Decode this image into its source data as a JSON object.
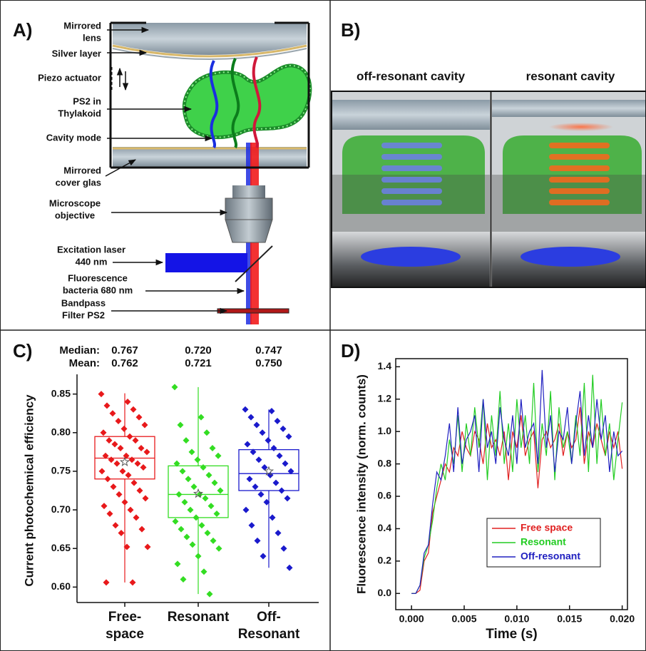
{
  "panel_a": {
    "label": "A)",
    "annotations": [
      [
        "Mirrored",
        "lens"
      ],
      [
        "Silver layer"
      ],
      [
        "Piezo actuator"
      ],
      [
        "PS2 in",
        "Thylakoid"
      ],
      [
        "Cavity mode"
      ],
      [
        "Mirrored",
        "cover glas"
      ],
      [
        "Microscope",
        "objective"
      ],
      [
        "Excitation laser",
        "440 nm"
      ],
      [
        "Fluorescence",
        "bacteria 680 nm"
      ],
      [
        "Bandpass",
        "Filter PS2"
      ]
    ]
  },
  "panel_b": {
    "label": "B)",
    "captions": [
      "off-resonant cavity",
      "resonant cavity"
    ]
  },
  "chart_data": [
    {
      "type": "box",
      "label": "C)",
      "median_title": "Median:",
      "mean_title": "Mean:",
      "ylabel": "Current photochemical efficiency",
      "categories": [
        [
          "Free-",
          "space"
        ],
        [
          "Resonant"
        ],
        [
          "Off-",
          "Resonant"
        ]
      ],
      "ylim": [
        0.58,
        0.87
      ],
      "yticks": [
        {
          "value": 0.6,
          "label": "0.60"
        },
        0.65,
        {
          "value": 0.7,
          "label": "0.70"
        },
        0.75,
        {
          "value": 0.8,
          "label": "0.80"
        },
        0.85
      ],
      "boxes": [
        {
          "color": "#e8191b",
          "q1": 0.74,
          "median": 0.767,
          "median_label": "0.767",
          "q3": 0.795,
          "mean": 0.762,
          "mean_label": "0.762",
          "whisker_low": 0.606,
          "whisker_high": 0.851,
          "points": [
            0.85,
            0.84,
            0.835,
            0.83,
            0.825,
            0.82,
            0.815,
            0.81,
            0.805,
            0.8,
            0.795,
            0.79,
            0.79,
            0.785,
            0.78,
            0.78,
            0.775,
            0.77,
            0.77,
            0.765,
            0.765,
            0.76,
            0.76,
            0.755,
            0.75,
            0.75,
            0.745,
            0.74,
            0.735,
            0.73,
            0.725,
            0.72,
            0.715,
            0.71,
            0.705,
            0.7,
            0.695,
            0.69,
            0.68,
            0.675,
            0.67,
            0.652,
            0.652,
            0.606,
            0.606
          ]
        },
        {
          "color": "#33dd22",
          "q1": 0.69,
          "median": 0.72,
          "median_label": "0.720",
          "q3": 0.757,
          "mean": 0.721,
          "mean_label": "0.721",
          "whisker_low": 0.591,
          "whisker_high": 0.859,
          "points": [
            0.859,
            0.82,
            0.81,
            0.8,
            0.79,
            0.78,
            0.775,
            0.77,
            0.765,
            0.76,
            0.755,
            0.75,
            0.745,
            0.74,
            0.735,
            0.73,
            0.725,
            0.72,
            0.72,
            0.715,
            0.71,
            0.705,
            0.7,
            0.695,
            0.69,
            0.685,
            0.68,
            0.675,
            0.67,
            0.665,
            0.66,
            0.655,
            0.65,
            0.64,
            0.63,
            0.62,
            0.61,
            0.591
          ]
        },
        {
          "color": "#1a1acc",
          "q1": 0.725,
          "median": 0.747,
          "median_label": "0.747",
          "q3": 0.778,
          "mean": 0.75,
          "mean_label": "0.750",
          "whisker_low": 0.625,
          "whisker_high": 0.83,
          "points": [
            0.83,
            0.828,
            0.82,
            0.815,
            0.81,
            0.805,
            0.8,
            0.795,
            0.79,
            0.785,
            0.78,
            0.775,
            0.77,
            0.765,
            0.76,
            0.755,
            0.75,
            0.745,
            0.74,
            0.735,
            0.73,
            0.725,
            0.72,
            0.715,
            0.71,
            0.7,
            0.69,
            0.68,
            0.67,
            0.66,
            0.65,
            0.64,
            0.625
          ]
        }
      ]
    },
    {
      "type": "line",
      "label": "D)",
      "xlabel": "Time (s)",
      "ylabel": "Fluorescence intensity (norm. counts)",
      "xlim": [
        -0.0015,
        0.0205
      ],
      "ylim": [
        -0.1,
        1.45
      ],
      "xticks": [
        {
          "value": 0,
          "label": "0.000"
        },
        0.005,
        {
          "value": 0.01,
          "label": "0.010"
        },
        0.015,
        {
          "value": 0.02,
          "label": "0.020"
        }
      ],
      "yticks": [
        {
          "value": 0,
          "label": "0.0"
        },
        0.2,
        0.4,
        0.6,
        0.8,
        {
          "value": 1,
          "label": "1.0"
        },
        1.2,
        1.4
      ],
      "legend": "lower right",
      "x": [
        0,
        0.0004,
        0.0008,
        0.0012,
        0.0016,
        0.002,
        0.0024,
        0.0028,
        0.0032,
        0.0036,
        0.004,
        0.0044,
        0.0048,
        0.0052,
        0.0056,
        0.006,
        0.0064,
        0.0068,
        0.0072,
        0.0076,
        0.008,
        0.0084,
        0.0088,
        0.0092,
        0.0096,
        0.01,
        0.0104,
        0.0108,
        0.0112,
        0.0116,
        0.012,
        0.0124,
        0.0128,
        0.0132,
        0.0136,
        0.014,
        0.0144,
        0.0148,
        0.0152,
        0.0156,
        0.016,
        0.0164,
        0.0168,
        0.0172,
        0.0176,
        0.018,
        0.0184,
        0.0188,
        0.0192,
        0.0196,
        0.02
      ],
      "series": [
        {
          "name": "Free space",
          "color": "#e02020",
          "values": [
            0,
            0,
            0.02,
            0.2,
            0.25,
            0.5,
            0.6,
            0.7,
            0.8,
            0.75,
            0.9,
            0.85,
            1.0,
            0.9,
            0.85,
            1.0,
            0.95,
            0.8,
            1.05,
            0.9,
            0.95,
            0.85,
            1.0,
            0.7,
            1.0,
            0.9,
            1.1,
            0.85,
            0.95,
            1.0,
            0.65,
            0.95,
            1.0,
            0.9,
            0.95,
            1.05,
            0.85,
            1.0,
            0.9,
            0.95,
            1.15,
            0.8,
            1.0,
            0.9,
            1.05,
            0.95,
            0.85,
            1.0,
            0.9,
            1.0,
            0.77
          ]
        },
        {
          "name": "Resonant",
          "color": "#22cc22",
          "values": [
            0,
            0,
            0.05,
            0.22,
            0.3,
            0.45,
            0.65,
            0.8,
            0.7,
            0.95,
            0.8,
            1.1,
            0.75,
            1.05,
            0.85,
            1.15,
            0.9,
            1.2,
            0.7,
            1.1,
            0.85,
            1.25,
            0.8,
            1.05,
            0.75,
            1.2,
            0.9,
            1.1,
            0.8,
            1.3,
            0.75,
            1.05,
            0.85,
            1.25,
            0.7,
            1.15,
            0.9,
            1.0,
            0.8,
            1.1,
            0.85,
            1.3,
            0.75,
            1.35,
            0.8,
            1.2,
            0.85,
            1.05,
            0.7,
            0.95,
            1.18
          ]
        },
        {
          "name": "Off-resonant",
          "color": "#2020c0",
          "values": [
            0,
            0,
            0.05,
            0.25,
            0.3,
            0.55,
            0.75,
            0.7,
            0.85,
            1.05,
            0.75,
            1.15,
            0.8,
            0.95,
            1.0,
            1.1,
            0.75,
            1.2,
            0.9,
            1.0,
            0.8,
            1.15,
            0.95,
            0.85,
            1.1,
            0.8,
            1.2,
            0.9,
            1.0,
            1.05,
            0.8,
            1.38,
            0.9,
            1.1,
            0.75,
            1.0,
            0.95,
            1.15,
            0.8,
            1.05,
            1.25,
            0.85,
            1.1,
            0.9,
            1.2,
            0.95,
            1.1,
            0.75,
            1.0,
            0.85,
            0.88
          ]
        }
      ]
    }
  ]
}
